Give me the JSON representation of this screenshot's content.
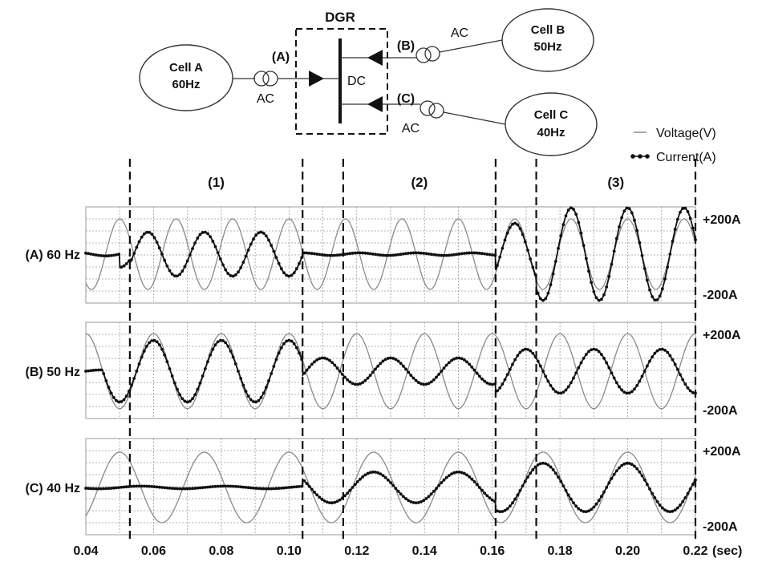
{
  "diagram": {
    "dgr_label": "DGR",
    "dc_label": "DC",
    "cells": [
      {
        "id": "A",
        "name": "Cell A",
        "freq": "60Hz"
      },
      {
        "id": "B",
        "name": "Cell B",
        "freq": "50Hz"
      },
      {
        "id": "C",
        "name": "Cell C",
        "freq": "40Hz"
      }
    ],
    "links": [
      {
        "tag": "(A)",
        "ac": "AC"
      },
      {
        "tag": "(B)",
        "ac": "AC"
      },
      {
        "tag": "(C)",
        "ac": "AC"
      }
    ]
  },
  "legend": {
    "voltage": "Voltage(V)",
    "current": "Current(A)"
  },
  "phases": [
    "(1)",
    "(2)",
    "(3)"
  ],
  "colors": {
    "voltage": "#8a8a8a",
    "current": "#111111",
    "grid": "#9a9a9a"
  },
  "chart_data": {
    "type": "line",
    "xlabel": "(sec)",
    "xlim": [
      0.04,
      0.22
    ],
    "x_ticks": [
      "0.04",
      "0.06",
      "0.08",
      "0.10",
      "0.12",
      "0.14",
      "0.16",
      "0.18",
      "0.20",
      "0.22"
    ],
    "phase_boundaries": [
      0.053,
      0.104,
      0.116,
      0.161,
      0.173,
      0.22
    ],
    "y_tick_labels": {
      "top": "+200A",
      "bottom": "-200A"
    },
    "ylim": [
      -250,
      250
    ],
    "panels": [
      {
        "label": "(A) 60 Hz",
        "frequency_hz": 60,
        "voltage": {
          "amplitude": 160,
          "phase_deg": 90
        },
        "current_segments": [
          {
            "t": [
              0.04,
              0.05
            ],
            "amplitude": 8,
            "phase_deg": 0
          },
          {
            "t": [
              0.05,
              0.053
            ],
            "amplitude": 60,
            "phase_deg": -90
          },
          {
            "t": [
              0.053,
              0.104
            ],
            "amplitude": 100,
            "phase_deg": -90
          },
          {
            "t": [
              0.104,
              0.161
            ],
            "amplitude": 6,
            "phase_deg": 0
          },
          {
            "t": [
              0.161,
              0.173
            ],
            "amplitude": 140,
            "phase_deg": 90
          },
          {
            "t": [
              0.173,
              0.22
            ],
            "amplitude": 210,
            "phase_deg": 90
          }
        ]
      },
      {
        "label": "(B) 50 Hz",
        "frequency_hz": 50,
        "voltage": {
          "amplitude": 170,
          "phase_deg": 90
        },
        "current_segments": [
          {
            "t": [
              0.04,
              0.045
            ],
            "amplitude": 6,
            "phase_deg": 0
          },
          {
            "t": [
              0.045,
              0.104
            ],
            "amplitude": 140,
            "phase_deg": 90
          },
          {
            "t": [
              0.104,
              0.161
            ],
            "amplitude": 60,
            "phase_deg": -90
          },
          {
            "t": [
              0.161,
              0.22
            ],
            "amplitude": 100,
            "phase_deg": -90
          }
        ]
      },
      {
        "label": "(C) 40 Hz",
        "frequency_hz": 40,
        "voltage": {
          "amplitude": 160,
          "phase_deg": 90
        },
        "current_segments": [
          {
            "t": [
              0.04,
              0.104
            ],
            "amplitude": 6,
            "phase_deg": 0
          },
          {
            "t": [
              0.104,
              0.161
            ],
            "amplitude": 70,
            "phase_deg": 90
          },
          {
            "t": [
              0.161,
              0.22
            ],
            "amplitude": 110,
            "phase_deg": 90
          }
        ]
      }
    ]
  }
}
